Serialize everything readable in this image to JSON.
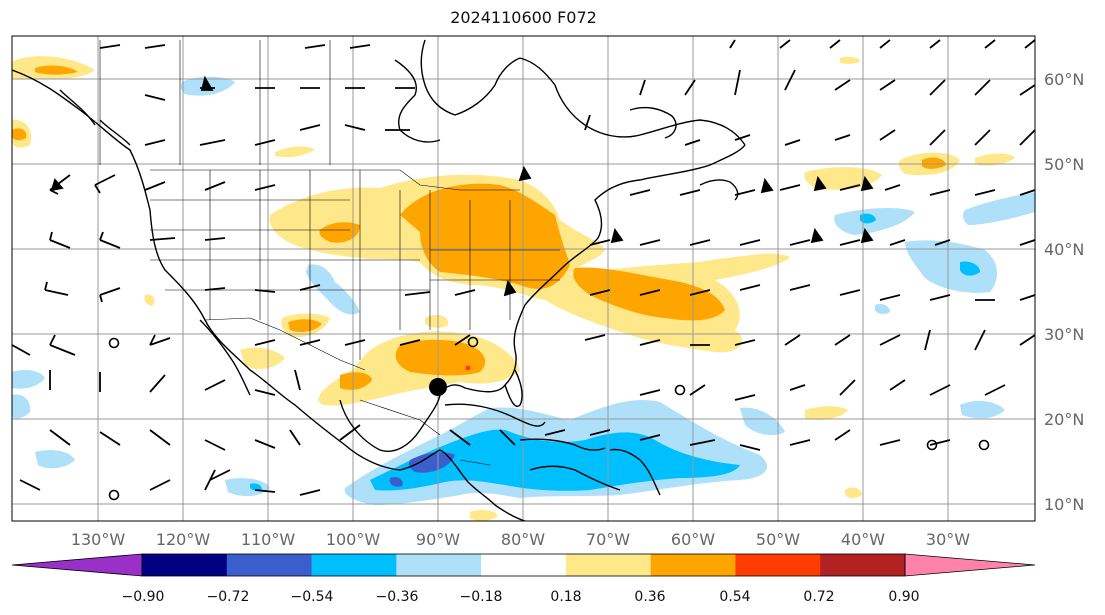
{
  "title": "2024110600 F072",
  "lat_labels": [
    "60°N",
    "50°N",
    "40°N",
    "30°N",
    "20°N",
    "10°N"
  ],
  "lon_labels": [
    "130°W",
    "120°W",
    "110°W",
    "100°W",
    "90°W",
    "80°W",
    "70°W",
    "60°W",
    "50°W",
    "40°W",
    "30°W"
  ],
  "colorbar": {
    "ticks": [
      "−0.90",
      "−0.72",
      "−0.54",
      "−0.36",
      "−0.18",
      "0.18",
      "0.36",
      "0.54",
      "0.72",
      "0.90"
    ],
    "colors": [
      "#9b30c8",
      "#000080",
      "#3a5fcd",
      "#00bfff",
      "#aee0fa",
      "#ffffff",
      "#ffe88a",
      "#ffa500",
      "#ff3c00",
      "#b22222",
      "#ff82ab"
    ]
  }
}
